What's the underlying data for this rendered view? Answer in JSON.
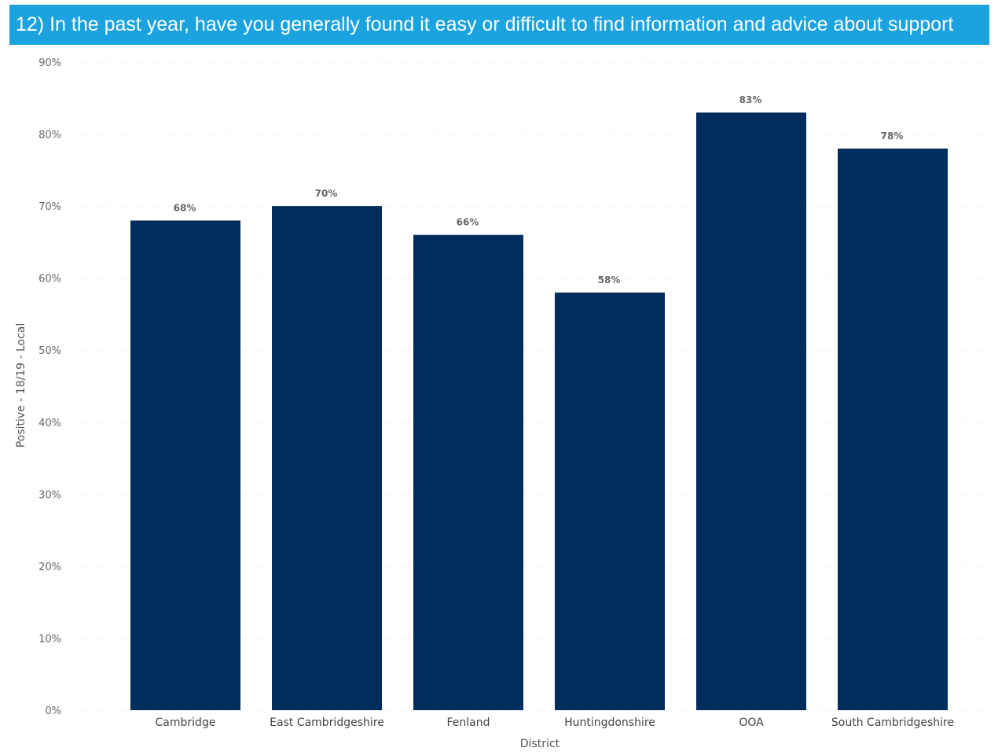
{
  "header": {
    "title": "12) In the past year, have you generally found it easy or difficult to find information and advice about support"
  },
  "chart_data": {
    "type": "bar",
    "categories": [
      "Cambridge",
      "East Cambridgeshire",
      "Fenland",
      "Huntingdonshire",
      "OOA",
      "South Cambridgeshire"
    ],
    "values": [
      68,
      70,
      66,
      58,
      83,
      78
    ],
    "data_labels": [
      "68%",
      "70%",
      "66%",
      "58%",
      "83%",
      "78%"
    ],
    "xlabel": "District",
    "ylabel": "Positive - 18/19 - Local",
    "ylim": [
      0,
      90
    ],
    "yticks": [
      0,
      10,
      20,
      30,
      40,
      50,
      60,
      70,
      80,
      90
    ],
    "ytick_labels": [
      "0%",
      "10%",
      "20%",
      "30%",
      "40%",
      "50%",
      "60%",
      "70%",
      "80%",
      "90%"
    ],
    "grid": true,
    "legend": "none",
    "bar_color": "#002d5b",
    "grid_color": "#dddddd"
  }
}
